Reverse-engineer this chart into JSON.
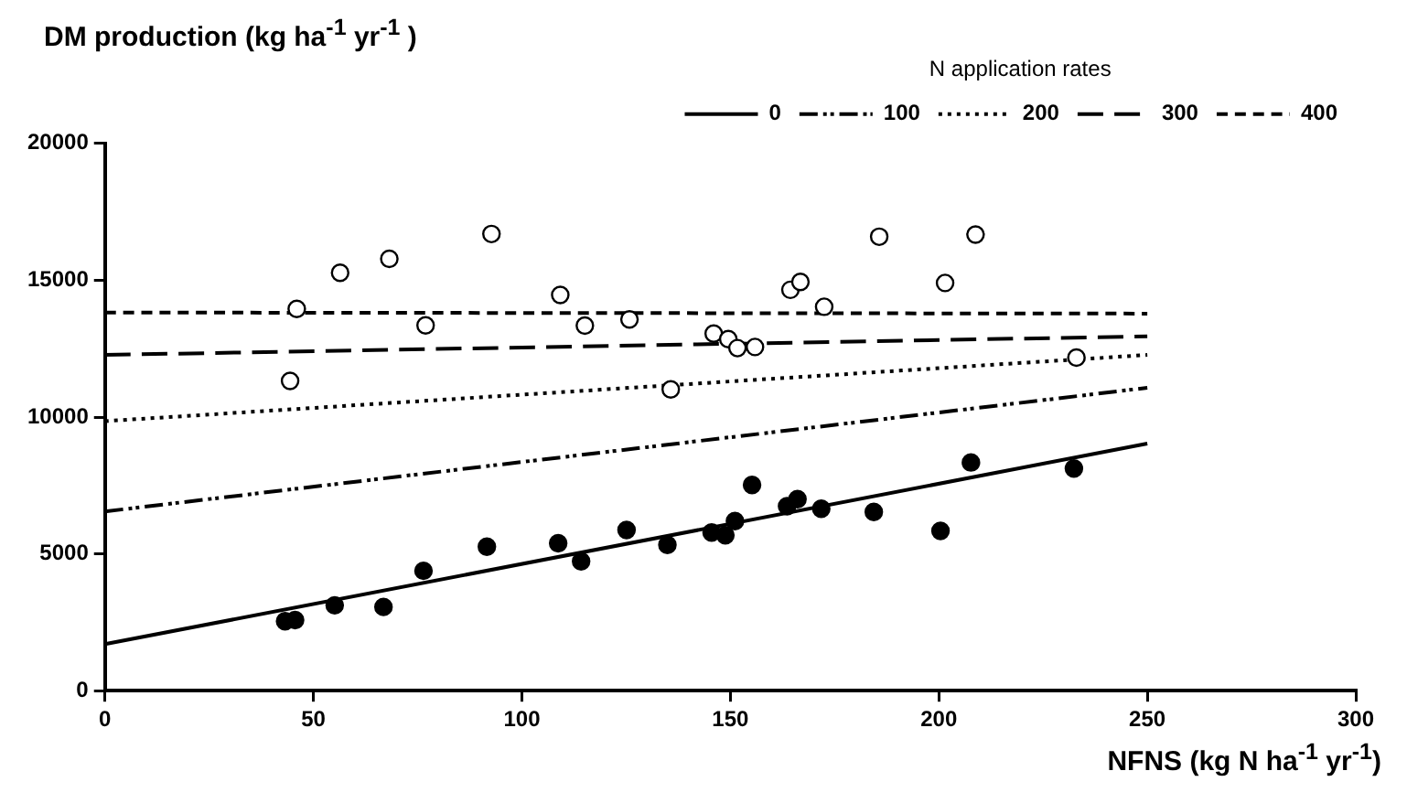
{
  "chart_data": {
    "type": "line",
    "ylabel": "DM production (kg ha$^{-1}$ yr$^{-1}$ )",
    "xlabel": "NFNS (kg N ha$^{-1}$ yr$^{-1}$)",
    "legend_title": "N application rates",
    "legend": "top right",
    "grid": false,
    "xlim": [
      0,
      300
    ],
    "xticks": [
      0,
      50,
      100,
      150,
      200,
      250,
      300
    ],
    "ylim": [
      0,
      20000
    ],
    "yticks": [
      0,
      5000,
      10000,
      15000,
      20000
    ],
    "series": [
      {
        "type": "scatter",
        "marker": "circle",
        "color": "#000000",
        "x": [
          43.2,
          45.6,
          55.1,
          66.8,
          76.4,
          91.6,
          108.7,
          114.2,
          125.1,
          134.9,
          145.5,
          148.8,
          151.1,
          155.2,
          163.6,
          166.1,
          171.8,
          184.4,
          200.4,
          207.7,
          232.4
        ],
        "values": [
          2540,
          2580,
          3120,
          3060,
          4380,
          5260,
          5390,
          4730,
          5870,
          5330,
          5780,
          5680,
          6200,
          7520,
          6740,
          7000,
          6650,
          6530,
          5840,
          8340,
          8120
        ]
      },
      {
        "type": "scatter",
        "marker": "circle",
        "color": "#ffffff",
        "x": [
          44.4,
          46,
          56.4,
          68.2,
          76.9,
          92.7,
          109.2,
          115.1,
          125.8,
          135.7,
          146,
          149.5,
          151.7,
          155.9,
          164.4,
          166.8,
          172.5,
          185.7,
          201.5,
          208.8,
          233
        ],
        "values": [
          11320,
          13950,
          15270,
          15780,
          13350,
          16690,
          14460,
          13340,
          13570,
          11010,
          13050,
          12850,
          12520,
          12560,
          14650,
          14940,
          14030,
          16590,
          14900,
          16670,
          12170
        ]
      },
      {
        "name": "0",
        "marker": "none",
        "line_style": "solid",
        "color": "#000000",
        "x": [
          0,
          250
        ],
        "values": [
          1700,
          9030
        ]
      },
      {
        "name": "100",
        "marker": "none",
        "line_style": "dashdotdot",
        "color": "#000000",
        "x": [
          0,
          250
        ],
        "values": [
          6550,
          11070
        ]
      },
      {
        "name": "200",
        "marker": "none",
        "line_style": "dotted",
        "color": "#000000",
        "x": [
          0,
          250
        ],
        "values": [
          9850,
          12270
        ]
      },
      {
        "name": "300",
        "marker": "none",
        "line_style": "longdash",
        "color": "#000000",
        "x": [
          0,
          250
        ],
        "values": [
          12270,
          12950
        ]
      },
      {
        "name": "400",
        "marker": "none",
        "line_style": "dashed",
        "color": "#000000",
        "x": [
          0,
          250
        ],
        "values": [
          13820,
          13780
        ]
      }
    ]
  }
}
